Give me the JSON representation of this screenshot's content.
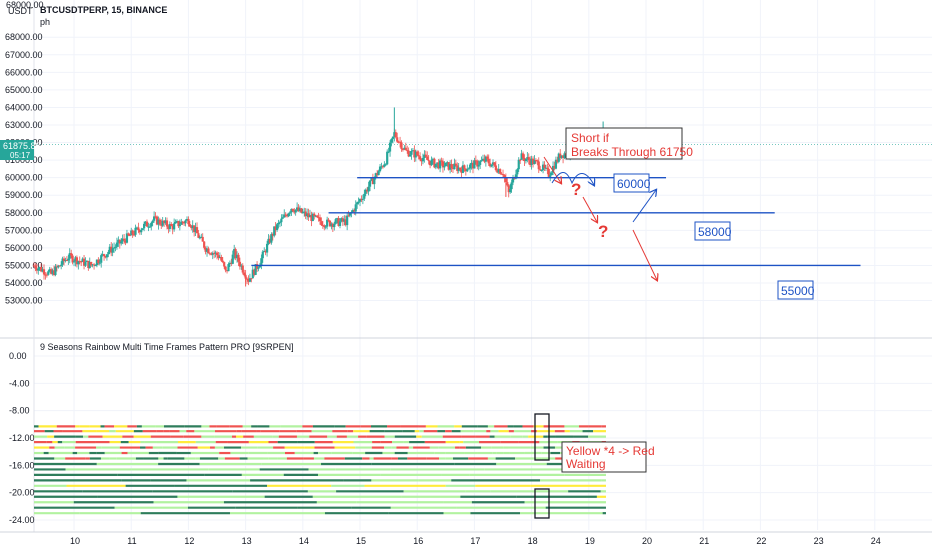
{
  "header": {
    "symbol": "BTCUSDTPERP, 15, BINANCE",
    "indicator_short": "ph",
    "currency": "USDT"
  },
  "indicator": {
    "title": "9 Seasons Rainbow Multi Time Frames Pattern PRO [9SRPEN]"
  },
  "price_tag": {
    "value": "61875.88",
    "countdown": "05:17"
  },
  "annotations": {
    "short_line1": "Short if",
    "short_line2": "Breaks Through 61750",
    "yellow_line1": "Yellow *4 -> Red",
    "yellow_line2": "Waiting",
    "question_mark": "?"
  },
  "colors": {
    "bull": "#26a69a",
    "bear": "#ef5350",
    "level_line": "#1e53c5",
    "arrow_red": "#e53935",
    "arrow_blue": "#1e53c5",
    "rb_red": "#ef5350",
    "rb_light_green": "#b2f2a0",
    "rb_dark_green": "#2e7d5b",
    "rb_yellow": "#ffeb3b"
  },
  "chart_data": [
    {
      "type": "candlestick",
      "title": "BTCUSDTPERP, 15, BINANCE",
      "ylabel": "USDT",
      "ylim": [
        52500,
        68500
      ],
      "y_ticks": [
        "53000.00",
        "54000.00",
        "55000.00",
        "56000.00",
        "57000.00",
        "58000.00",
        "59000.00",
        "60000.00",
        "61000.00",
        "62000.00",
        "63000.00",
        "64000.00",
        "65000.00",
        "66000.00",
        "67000.00",
        "68000.00"
      ],
      "x_ticks": [
        "10",
        "11",
        "12",
        "13",
        "14",
        "15",
        "16",
        "17",
        "18",
        "19",
        "20",
        "21",
        "22",
        "23",
        "24"
      ],
      "x_tick_values": [
        10,
        11,
        12,
        13,
        14,
        15,
        16,
        17,
        18,
        19,
        20,
        21,
        22,
        23,
        24
      ],
      "xlim": [
        9.3,
        25.0
      ],
      "data_range": [
        9.3,
        19.27
      ],
      "path": [
        [
          9.3,
          55000
        ],
        [
          9.6,
          54500
        ],
        [
          9.9,
          55500
        ],
        [
          10.3,
          55000
        ],
        [
          10.6,
          55800
        ],
        [
          11.1,
          57000
        ],
        [
          11.4,
          57600
        ],
        [
          11.7,
          57200
        ],
        [
          12.0,
          57600
        ],
        [
          12.3,
          56000
        ],
        [
          12.55,
          55500
        ],
        [
          12.65,
          54600
        ],
        [
          12.8,
          55700
        ],
        [
          13.05,
          54200
        ],
        [
          13.25,
          55200
        ],
        [
          13.5,
          57000
        ],
        [
          13.8,
          58300
        ],
        [
          14.1,
          57800
        ],
        [
          14.4,
          57400
        ],
        [
          14.75,
          57500
        ],
        [
          14.95,
          58500
        ],
        [
          15.25,
          60000
        ],
        [
          15.45,
          61000
        ],
        [
          15.6,
          62500
        ],
        [
          15.8,
          61500
        ],
        [
          16.0,
          61300
        ],
        [
          16.3,
          60800
        ],
        [
          16.8,
          60500
        ],
        [
          17.2,
          61000
        ],
        [
          17.5,
          60300
        ],
        [
          17.6,
          59100
        ],
        [
          17.8,
          61200
        ],
        [
          18.1,
          60800
        ],
        [
          18.3,
          60200
        ],
        [
          18.5,
          61300
        ],
        [
          18.8,
          61600
        ],
        [
          19.0,
          62500
        ],
        [
          19.2,
          61900
        ],
        [
          19.27,
          61875
        ]
      ],
      "spikes": [
        {
          "x": 15.6,
          "high": 64000
        },
        {
          "x": 17.55,
          "low": 58900
        },
        {
          "x": 13.0,
          "low": 53800
        },
        {
          "x": 19.25,
          "high": 63200
        }
      ],
      "levels": [
        {
          "price": 61750,
          "x_start": 18.8,
          "x_end": 19.35
        },
        {
          "price": 60000,
          "x_start": 14.95,
          "x_end": 20.35,
          "label": "60000"
        },
        {
          "price": 58000,
          "x_start": 14.45,
          "x_end": 22.25,
          "label": "58000"
        },
        {
          "price": 55000,
          "x_start": 13.1,
          "x_end": 23.75,
          "label": "55000"
        }
      ],
      "last_price": 61875.88
    },
    {
      "type": "heatmap",
      "title": "9 Seasons Rainbow Multi Time Frames Pattern PRO [9SRPEN]",
      "ylim": [
        -24.5,
        1.0
      ],
      "y_ticks": [
        "0.00",
        "-4.00",
        "-8.00",
        "-12.00",
        "-16.00",
        "-20.00",
        "-24.00"
      ],
      "y_tick_values": [
        0,
        -4,
        -8,
        -12,
        -16,
        -20,
        -24
      ],
      "rows": [
        {
          "y": -10.3,
          "pattern": "mixed"
        },
        {
          "y": -11.0,
          "pattern": "mixed"
        },
        {
          "y": -11.8,
          "pattern": "mixed"
        },
        {
          "y": -12.6,
          "pattern": "mixed"
        },
        {
          "y": -13.4,
          "pattern": "mixed"
        },
        {
          "y": -14.2,
          "pattern": "mixed_green"
        },
        {
          "y": -15.0,
          "pattern": "mixed_green"
        },
        {
          "y": -15.8,
          "pattern": "green"
        },
        {
          "y": -16.6,
          "pattern": "green"
        },
        {
          "y": -17.4,
          "pattern": "green"
        },
        {
          "y": -18.2,
          "pattern": "green_dark"
        },
        {
          "y": -19.0,
          "pattern": "green_yellow"
        },
        {
          "y": -19.8,
          "pattern": "green_dark"
        },
        {
          "y": -20.6,
          "pattern": "yellow_end"
        },
        {
          "y": -21.4,
          "pattern": "green_dark"
        },
        {
          "y": -22.2,
          "pattern": "green_dark"
        },
        {
          "y": -23.0,
          "pattern": "light_dark"
        }
      ]
    }
  ]
}
